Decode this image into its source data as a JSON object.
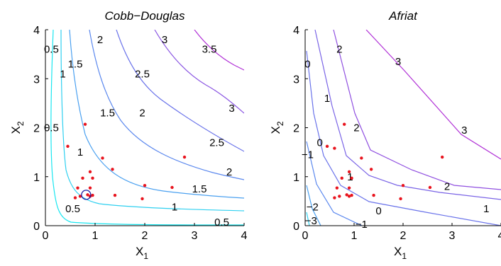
{
  "chart_data": [
    {
      "type": "contour",
      "title": "Cobb−Douglas",
      "xlabel": "X",
      "xlabel_sub": "1",
      "ylabel": "X",
      "ylabel_sub": "2",
      "xlim": [
        0,
        4
      ],
      "ylim": [
        0,
        4
      ],
      "xticks": [
        "0",
        "1",
        "2",
        "3",
        "4"
      ],
      "yticks": [
        "0",
        "1",
        "2",
        "3",
        "4"
      ],
      "contour_levels": [
        {
          "level": "0.5",
          "color": "#19e6f0"
        },
        {
          "level": "1",
          "color": "#2fd0f0"
        },
        {
          "level": "1.5",
          "color": "#4aa0f0"
        },
        {
          "level": "2",
          "color": "#5b88ee"
        },
        {
          "level": "2.5",
          "color": "#6a73ea"
        },
        {
          "level": "3",
          "color": "#8a55e2"
        },
        {
          "level": "3.5",
          "color": "#b030d6"
        }
      ],
      "contour_labels": [
        {
          "text": "0.5",
          "x": 0.12,
          "y": 3.6
        },
        {
          "text": "0.5",
          "x": 0.12,
          "y": 2.0
        },
        {
          "text": "0.5",
          "x": 0.55,
          "y": 0.35
        },
        {
          "text": "0.5",
          "x": 3.55,
          "y": 0.07
        },
        {
          "text": "1",
          "x": 0.35,
          "y": 3.1
        },
        {
          "text": "1",
          "x": 0.7,
          "y": 1.5
        },
        {
          "text": "1",
          "x": 2.6,
          "y": 0.38
        },
        {
          "text": "1.5",
          "x": 0.6,
          "y": 3.3
        },
        {
          "text": "1.5",
          "x": 1.25,
          "y": 2.3
        },
        {
          "text": "1.5",
          "x": 3.1,
          "y": 0.75
        },
        {
          "text": "2",
          "x": 1.1,
          "y": 3.8
        },
        {
          "text": "2",
          "x": 1.95,
          "y": 2.3
        },
        {
          "text": "2",
          "x": 3.7,
          "y": 1.1
        },
        {
          "text": "2.5",
          "x": 1.95,
          "y": 3.1
        },
        {
          "text": "2.5",
          "x": 3.45,
          "y": 1.7
        },
        {
          "text": "3",
          "x": 2.4,
          "y": 3.8
        },
        {
          "text": "3",
          "x": 3.75,
          "y": 2.4
        },
        {
          "text": "3.5",
          "x": 3.3,
          "y": 3.6
        }
      ],
      "points": [
        {
          "x": 0.45,
          "y": 1.62
        },
        {
          "x": 0.8,
          "y": 2.07
        },
        {
          "x": 1.15,
          "y": 1.38
        },
        {
          "x": 1.35,
          "y": 1.15
        },
        {
          "x": 0.9,
          "y": 1.1
        },
        {
          "x": 0.95,
          "y": 0.97
        },
        {
          "x": 0.75,
          "y": 0.97
        },
        {
          "x": 0.65,
          "y": 0.77
        },
        {
          "x": 0.9,
          "y": 0.77
        },
        {
          "x": 0.9,
          "y": 0.6
        },
        {
          "x": 0.95,
          "y": 0.62
        },
        {
          "x": 0.7,
          "y": 0.6
        },
        {
          "x": 0.6,
          "y": 0.57
        },
        {
          "x": 0.85,
          "y": 0.63
        },
        {
          "x": 1.4,
          "y": 0.62
        },
        {
          "x": 2.0,
          "y": 0.82
        },
        {
          "x": 2.55,
          "y": 0.78
        },
        {
          "x": 2.8,
          "y": 1.4
        },
        {
          "x": 1.95,
          "y": 0.55
        }
      ],
      "highlight": {
        "x": 0.82,
        "y": 0.63
      },
      "point_color": "#e8141e",
      "grid": false
    },
    {
      "type": "contour",
      "title": "Afriat",
      "xlabel": "X",
      "xlabel_sub": "1",
      "ylabel": "X",
      "ylabel_sub": "2",
      "xlim": [
        0,
        4
      ],
      "ylim": [
        0,
        4
      ],
      "xticks": [
        "0",
        "1",
        "2",
        "3",
        "4"
      ],
      "yticks": [
        "0",
        "1",
        "2",
        "3",
        "4"
      ],
      "contour_levels": [
        {
          "level": "−3",
          "color": "#2fd0f0"
        },
        {
          "level": "−2",
          "color": "#4aa0f0"
        },
        {
          "level": "−1",
          "color": "#5b88ee"
        },
        {
          "level": "0",
          "color": "#6a73ea"
        },
        {
          "level": "1",
          "color": "#7a64e6"
        },
        {
          "level": "2",
          "color": "#9050e0"
        },
        {
          "level": "3",
          "color": "#b030d6"
        }
      ],
      "contour_labels": [
        {
          "text": "−3",
          "x": 0.12,
          "y": 0.1
        },
        {
          "text": "−2",
          "x": 0.15,
          "y": 0.38
        },
        {
          "text": "−1",
          "x": 0.05,
          "y": 1.45
        },
        {
          "text": "−1",
          "x": 1.15,
          "y": 0.03
        },
        {
          "text": "0",
          "x": 0.05,
          "y": 3.3
        },
        {
          "text": "0",
          "x": 0.3,
          "y": 1.7
        },
        {
          "text": "0",
          "x": 1.5,
          "y": 0.3
        },
        {
          "text": "1",
          "x": 0.45,
          "y": 2.6
        },
        {
          "text": "1",
          "x": 0.92,
          "y": 1.0
        },
        {
          "text": "1",
          "x": 3.7,
          "y": 0.35
        },
        {
          "text": "2",
          "x": 0.7,
          "y": 3.6
        },
        {
          "text": "2",
          "x": 1.05,
          "y": 2.0
        },
        {
          "text": "2",
          "x": 2.9,
          "y": 0.8
        },
        {
          "text": "3",
          "x": 1.9,
          "y": 3.35
        },
        {
          "text": "3",
          "x": 3.25,
          "y": 1.95
        }
      ],
      "points": [
        {
          "x": 0.45,
          "y": 1.62
        },
        {
          "x": 0.8,
          "y": 2.07
        },
        {
          "x": 1.15,
          "y": 1.38
        },
        {
          "x": 1.35,
          "y": 1.15
        },
        {
          "x": 0.9,
          "y": 1.1
        },
        {
          "x": 0.95,
          "y": 0.97
        },
        {
          "x": 0.75,
          "y": 0.97
        },
        {
          "x": 0.65,
          "y": 0.77
        },
        {
          "x": 0.9,
          "y": 0.77
        },
        {
          "x": 0.9,
          "y": 0.6
        },
        {
          "x": 0.95,
          "y": 0.62
        },
        {
          "x": 0.7,
          "y": 0.6
        },
        {
          "x": 0.6,
          "y": 0.57
        },
        {
          "x": 0.85,
          "y": 0.63
        },
        {
          "x": 1.4,
          "y": 0.62
        },
        {
          "x": 2.0,
          "y": 0.82
        },
        {
          "x": 2.55,
          "y": 0.78
        },
        {
          "x": 2.8,
          "y": 1.4
        },
        {
          "x": 1.95,
          "y": 0.55
        },
        {
          "x": 0.6,
          "y": 1.58
        }
      ],
      "point_color": "#e8141e",
      "grid": false
    }
  ]
}
